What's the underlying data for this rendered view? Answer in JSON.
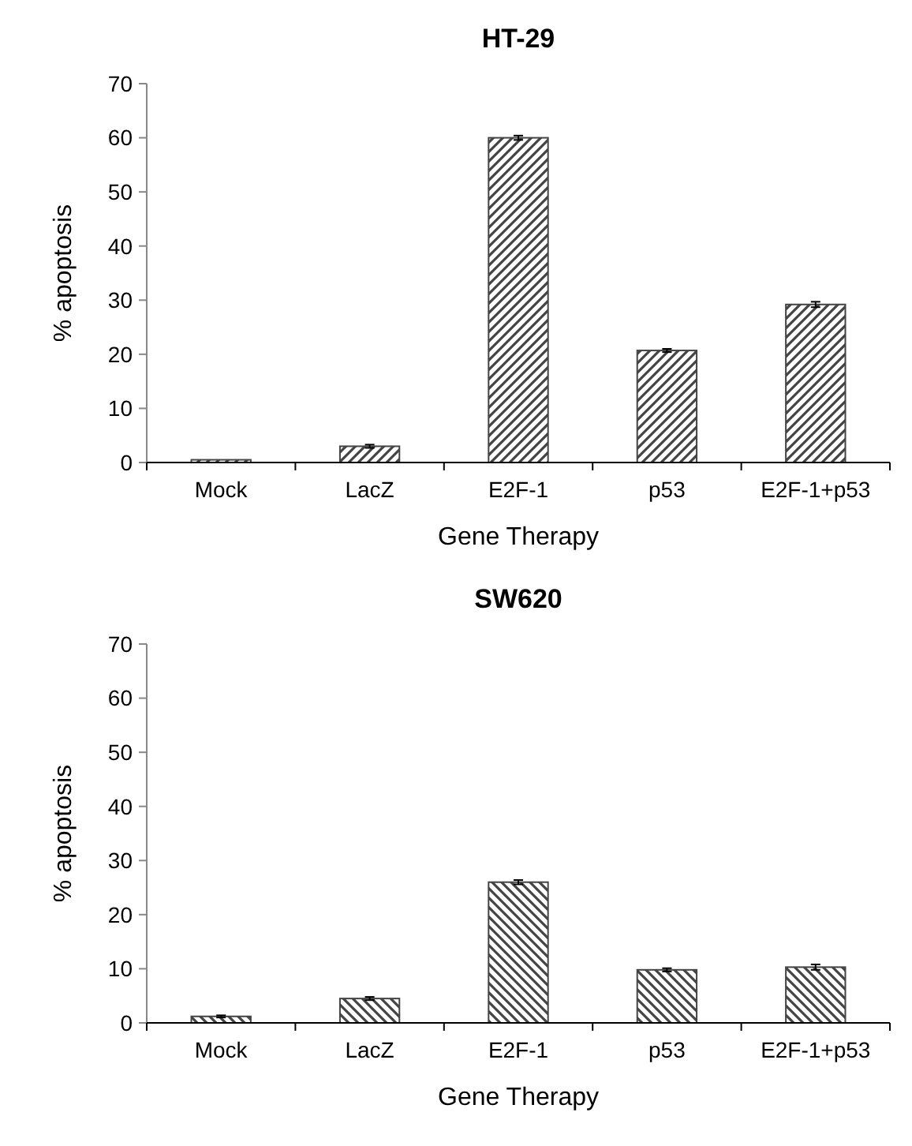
{
  "chart_data": [
    {
      "type": "bar",
      "title": "HT-29",
      "xlabel": "Gene Therapy",
      "ylabel": "% apoptosis",
      "categories": [
        "Mock",
        "LacZ",
        "E2F-1",
        "p53",
        "E2F-1+p53"
      ],
      "values": [
        0.5,
        3,
        60,
        20.7,
        29.2
      ],
      "errors": [
        null,
        0.3,
        0.4,
        0.3,
        0.5
      ],
      "color": "#444444",
      "ylim": [
        0,
        70
      ],
      "yticks": [
        0,
        10,
        20,
        30,
        40,
        50,
        60,
        70
      ],
      "grid": false
    },
    {
      "type": "bar",
      "title": "SW620",
      "xlabel": "Gene Therapy",
      "ylabel": "% apoptosis",
      "categories": [
        "Mock",
        "LacZ",
        "E2F-1",
        "p53",
        "E2F-1+p53"
      ],
      "values": [
        1.2,
        4.5,
        26,
        9.8,
        10.3
      ],
      "errors": [
        0.2,
        0.3,
        0.4,
        0.3,
        0.5
      ],
      "color": "#444444",
      "ylim": [
        0,
        70
      ],
      "yticks": [
        0,
        10,
        20,
        30,
        40,
        50,
        60,
        70
      ],
      "grid": false
    }
  ]
}
